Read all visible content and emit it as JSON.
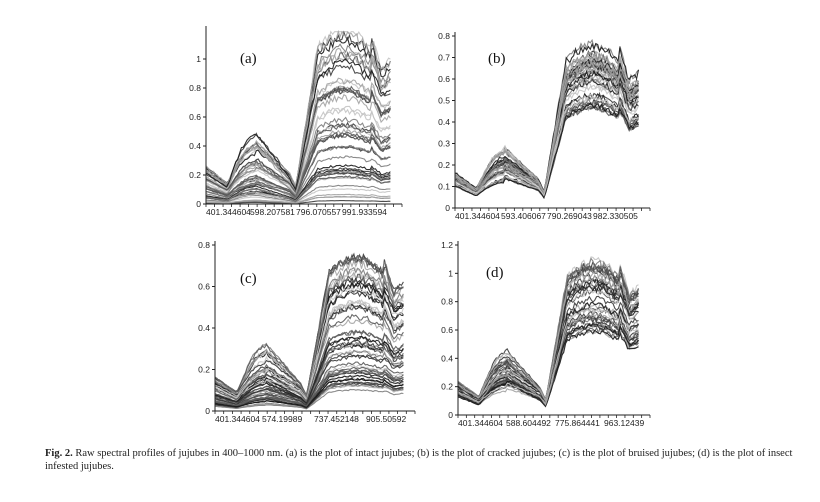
{
  "header_fragment": "· · · · · · · · · · · ·",
  "caption": {
    "label": "Fig. 2.",
    "text": " Raw spectral profiles of jujubes in 400–1000 nm. (a) is the plot of intact jujubes; (b) is the plot of cracked jujubes; (c) is the plot of bruised jujubes; (d) is the plot of insect infested jujubes."
  },
  "chart_data": [
    {
      "type": "line",
      "panel_label": "(a)",
      "x_tick_labels": [
        "401.344604",
        "598.207581",
        "796.070557",
        "991.933594"
      ],
      "y_ticks": [
        "0",
        "0.2",
        "0.4",
        "0.6",
        "0.8",
        "1"
      ],
      "ylim": [
        0,
        1.2
      ],
      "xlim": [
        401,
        1000
      ],
      "num_curves": 48,
      "peak_range": [
        0.02,
        1.2
      ],
      "green_peak_fraction": 0.55,
      "colors": [
        "#1a1a1a",
        "#3a3a3a",
        "#5a5a5a",
        "#7d7d7d",
        "#a3a3a3",
        "#c4c4c4"
      ]
    },
    {
      "type": "line",
      "panel_label": "(b)",
      "x_tick_labels": [
        "401.344604",
        "593.406067",
        "790.269043",
        "982.330505"
      ],
      "y_ticks": [
        "0",
        "0.1",
        "0.2",
        "0.3",
        "0.4",
        "0.5",
        "0.6",
        "0.7",
        "0.8"
      ],
      "ylim": [
        0,
        0.8
      ],
      "xlim": [
        401,
        1000
      ],
      "num_curves": 42,
      "peak_range": [
        0.45,
        0.77
      ],
      "green_peak_fraction": 0.4,
      "colors": [
        "#1a1a1a",
        "#3a3a3a",
        "#5a5a5a",
        "#7d7d7d",
        "#a3a3a3",
        "#c4c4c4"
      ]
    },
    {
      "type": "line",
      "panel_label": "(c)",
      "x_tick_labels": [
        "401.344604",
        "574.19989",
        "737.452148",
        "905.50592"
      ],
      "y_ticks": [
        "0",
        "0.2",
        "0.4",
        "0.6",
        "0.8"
      ],
      "ylim": [
        0,
        0.8
      ],
      "xlim": [
        401,
        1000
      ],
      "num_curves": 55,
      "peak_range": [
        0.1,
        0.75
      ],
      "green_peak_fraction": 0.45,
      "colors": [
        "#1a1a1a",
        "#3a3a3a",
        "#5a5a5a",
        "#7d7d7d",
        "#a3a3a3",
        "#c4c4c4"
      ]
    },
    {
      "type": "line",
      "panel_label": "(d)",
      "x_tick_labels": [
        "401.344604",
        "588.604492",
        "775.864441",
        "963.12439"
      ],
      "y_ticks": [
        "0",
        "0.2",
        "0.4",
        "0.6",
        "0.8",
        "1",
        "1.2"
      ],
      "ylim": [
        0,
        1.2
      ],
      "xlim": [
        401,
        1000
      ],
      "num_curves": 40,
      "peak_range": [
        0.55,
        1.1
      ],
      "green_peak_fraction": 0.45,
      "colors": [
        "#1a1a1a",
        "#3a3a3a",
        "#5a5a5a",
        "#7d7d7d",
        "#a3a3a3",
        "#c4c4c4"
      ]
    }
  ]
}
